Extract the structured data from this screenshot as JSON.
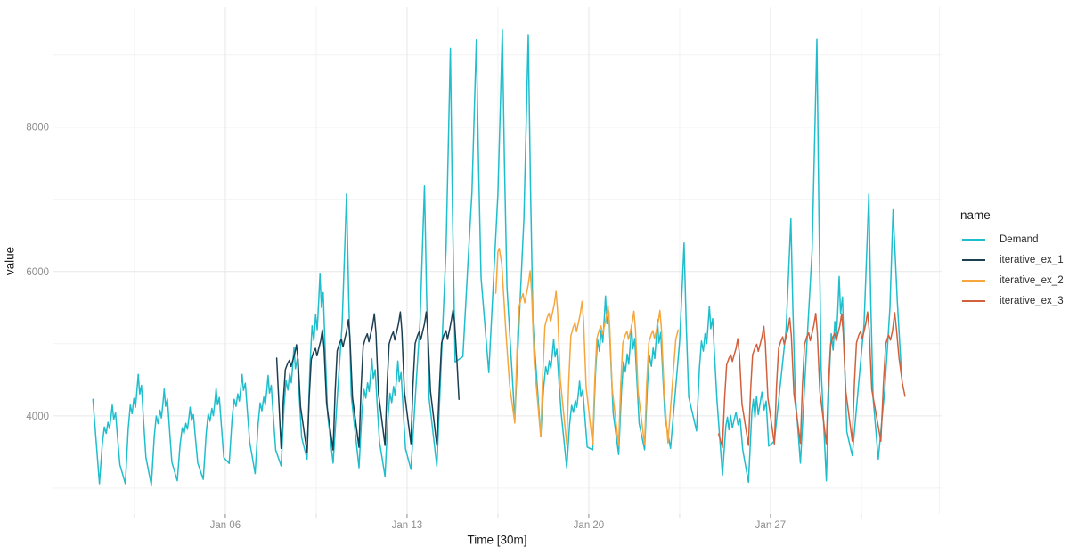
{
  "chart_data": {
    "type": "line",
    "title": "",
    "xlabel": "Time [30m]",
    "ylabel": "value",
    "legend_title": "name",
    "x_unit": "day of January",
    "x_domain": [
      -0.62,
      33.59
    ],
    "y_domain": [
      2640,
      9663
    ],
    "x_ticks": [
      {
        "v": 6,
        "label": "Jan 06"
      },
      {
        "v": 13,
        "label": "Jan 13"
      },
      {
        "v": 20,
        "label": "Jan 20"
      },
      {
        "v": 27,
        "label": "Jan 27"
      }
    ],
    "x_minor": [
      2.5,
      9.5,
      16.5,
      23.5,
      30.5,
      33.5
    ],
    "y_ticks": [
      {
        "v": 4000,
        "label": "4000"
      },
      {
        "v": 6000,
        "label": "6000"
      },
      {
        "v": 8000,
        "label": "8000"
      }
    ],
    "y_minor": [
      3000,
      5000,
      7000,
      9000
    ],
    "grid": "on",
    "legend_position": "right",
    "styles": {
      "background": "#FFFFFF",
      "grid_major": "#E7E7E7",
      "grid_minor": "#F2F2F2",
      "tick_mark": "#8A8A8A",
      "tick_mark_minor": "#DCDCDC",
      "tick_label_color": "#8C8C8C",
      "axis_title_color": "#1A1A1A",
      "line_width": 1.5
    },
    "shapes": {
      "normal": [
        [
          0.15,
          0
        ],
        [
          0.26,
          0.5
        ],
        [
          0.34,
          0.72
        ],
        [
          0.41,
          0.64
        ],
        [
          0.48,
          0.78
        ],
        [
          0.54,
          0.7
        ],
        [
          0.6,
          0.86
        ],
        [
          0.645,
          1
        ],
        [
          0.7,
          0.82
        ],
        [
          0.77,
          0.9
        ],
        [
          0.85,
          0.58
        ],
        [
          0.94,
          0.24
        ]
      ],
      "low": [
        [
          0.15,
          0
        ],
        [
          0.28,
          0.78
        ],
        [
          0.34,
          0.92
        ],
        [
          0.4,
          0.72
        ],
        [
          0.46,
          0.95
        ],
        [
          0.53,
          0.75
        ],
        [
          0.6,
          0.88
        ],
        [
          0.67,
          1
        ],
        [
          0.75,
          0.8
        ],
        [
          0.83,
          0.9
        ],
        [
          0.93,
          0.4
        ]
      ],
      "spike": [
        [
          0.15,
          0
        ],
        [
          0.35,
          0.3
        ],
        [
          0.5,
          0.52
        ],
        [
          0.6,
          0.8
        ],
        [
          0.67,
          1
        ],
        [
          0.75,
          0.62
        ],
        [
          0.85,
          0.25
        ]
      ],
      "spike_late": [
        [
          0.15,
          0
        ],
        [
          0.4,
          0.28
        ],
        [
          0.6,
          0.5
        ],
        [
          0.72,
          0.82
        ],
        [
          0.785,
          1
        ],
        [
          0.86,
          0.6
        ],
        [
          0.95,
          0.22
        ]
      ],
      "forecast": [
        [
          0.15,
          0
        ],
        [
          0.23,
          0.45
        ],
        [
          0.31,
          0.76
        ],
        [
          0.4,
          0.82
        ],
        [
          0.47,
          0.85
        ],
        [
          0.53,
          0.79
        ],
        [
          0.6,
          0.85
        ],
        [
          0.67,
          0.91
        ],
        [
          0.74,
          1
        ],
        [
          0.8,
          0.86
        ],
        [
          0.9,
          0.4
        ]
      ]
    },
    "series": [
      {
        "name": "Demand",
        "color": "#1FBECD",
        "default_shape": "normal",
        "prefix": [
          [
            0.9,
            4230
          ]
        ],
        "days": [
          {
            "d": 1,
            "min": 3060,
            "peak": 4150
          },
          {
            "d": 2,
            "min": 3060,
            "peak": 4575
          },
          {
            "d": 3,
            "min": 3040,
            "peak": 4370
          },
          {
            "d": 4,
            "min": 3100,
            "peak": 4120
          },
          {
            "d": 5,
            "min": 3120,
            "peak": 4380
          },
          {
            "d": 6,
            "min": 3340,
            "peak": 4575
          },
          {
            "d": 7,
            "min": 3200,
            "peak": 4560
          },
          {
            "d": 8,
            "min": 3305,
            "peak": 4950
          },
          {
            "d": 9,
            "min": 3400,
            "peak": 5965
          },
          {
            "d": 10,
            "min": 3345,
            "peak": 7075,
            "shape": "spike"
          },
          {
            "d": 11,
            "min": 3280,
            "peak": 4790
          },
          {
            "d": 12,
            "min": 3160,
            "peak": 4760
          },
          {
            "d": 13,
            "min": 3258,
            "peak": 7185,
            "shape": "spike"
          },
          {
            "d": 14,
            "min": 3300,
            "peak": 9090,
            "shape": "spike"
          },
          {
            "d": 15,
            "min": 4820,
            "peak": 9210,
            "shape": "spike"
          },
          {
            "d": 16,
            "min": 4600,
            "peak": 9350,
            "shape": "spike"
          },
          {
            "d": 17,
            "min": 3960,
            "peak": 9280,
            "shape": "spike"
          },
          {
            "d": 18,
            "min": 3710,
            "peak": 5060
          },
          {
            "d": 19,
            "min": 3280,
            "peak": 4480
          },
          {
            "d": 20,
            "min": 3530,
            "peak": 5660
          },
          {
            "d": 21,
            "min": 3465,
            "peak": 5250
          },
          {
            "d": 22,
            "min": 3530,
            "peak": 5335
          },
          {
            "d": 23,
            "min": 3550,
            "peak": 6395,
            "shape": "spike"
          },
          {
            "d": 24,
            "min": 3790,
            "peak": 5520
          },
          {
            "d": 25,
            "min": 3180,
            "peak": 4050,
            "shape": "low"
          },
          {
            "d": 26,
            "min": 3080,
            "peak": 4330,
            "shape": "low"
          },
          {
            "d": 27,
            "min": 3650,
            "peak": 6730,
            "shape": "spike_late"
          },
          {
            "d": 28,
            "min": 3345,
            "peak": 9215,
            "shape": "spike_late"
          },
          {
            "d": 29,
            "min": 3100,
            "peak": 5930
          },
          {
            "d": 30,
            "min": 3450,
            "peak": 7075,
            "shape": "spike_late"
          },
          {
            "d": 31,
            "pts": [
              [
                31.15,
                3400
              ],
              [
                31.4,
                4370
              ],
              [
                31.6,
                5500
              ],
              [
                31.72,
                6855
              ],
              [
                31.88,
                5600
              ],
              [
                32.05,
                4550
              ]
            ]
          }
        ]
      },
      {
        "name": "iterative_ex_1",
        "color": "#1D3F52",
        "default_shape": "forecast",
        "prefix": [
          [
            7.98,
            4800
          ]
        ],
        "days": [
          {
            "d": 8,
            "min": 3550,
            "peak": 4985
          },
          {
            "d": 9,
            "min": 3490,
            "peak": 5190
          },
          {
            "d": 10,
            "min": 3527,
            "peak": 5335
          },
          {
            "d": 11,
            "min": 3565,
            "peak": 5415
          },
          {
            "d": 12,
            "min": 3590,
            "peak": 5440
          },
          {
            "d": 13,
            "min": 3614,
            "peak": 5440
          },
          {
            "d": 14,
            "pts": [
              [
                14.15,
                3590
              ],
              [
                14.25,
                4430
              ],
              [
                14.33,
                5010
              ],
              [
                14.42,
                5120
              ],
              [
                14.5,
                5180
              ],
              [
                14.56,
                5060
              ],
              [
                14.63,
                5180
              ],
              [
                14.7,
                5310
              ],
              [
                14.77,
                5465
              ],
              [
                14.83,
                5300
              ],
              [
                14.93,
                4700
              ],
              [
                15.0,
                4230
              ]
            ]
          }
        ]
      },
      {
        "name": "iterative_ex_2",
        "color": "#F5A73E",
        "default_shape": "forecast",
        "prefix": [
          [
            16.42,
            5700
          ],
          [
            16.5,
            6270
          ],
          [
            16.55,
            6320
          ],
          [
            16.65,
            6100
          ],
          [
            16.8,
            5200
          ],
          [
            16.95,
            4420
          ]
        ],
        "days": [
          {
            "d": 17,
            "min": 3900,
            "peak": 6010
          },
          {
            "d": 18,
            "min": 3710,
            "peak": 5725
          },
          {
            "d": 19,
            "min": 3600,
            "peak": 5585
          },
          {
            "d": 20,
            "min": 3600,
            "peak": 5535
          },
          {
            "d": 21,
            "min": 3590,
            "peak": 5450
          },
          {
            "d": 22,
            "min": 3600,
            "peak": 5460
          }
        ],
        "suffix": [
          [
            23.05,
            3625
          ],
          [
            23.2,
            4350
          ],
          [
            23.35,
            5060
          ],
          [
            23.44,
            5190
          ]
        ]
      },
      {
        "name": "iterative_ex_3",
        "color": "#D2603C",
        "default_shape": "forecast",
        "prefix": [
          [
            25.0,
            3750
          ]
        ],
        "days": [
          {
            "d": 25,
            "min": 3565,
            "peak": 5070
          },
          {
            "d": 26,
            "min": 3590,
            "peak": 5240
          },
          {
            "d": 27,
            "min": 3610,
            "peak": 5355
          },
          {
            "d": 28,
            "min": 3620,
            "peak": 5420
          },
          {
            "d": 29,
            "min": 3615,
            "peak": 5415
          },
          {
            "d": 30,
            "min": 3650,
            "peak": 5440
          },
          {
            "d": 31,
            "pts": [
              [
                31.25,
                3650
              ],
              [
                31.35,
                4450
              ],
              [
                31.44,
                5000
              ],
              [
                31.55,
                5120
              ],
              [
                31.62,
                5050
              ],
              [
                31.7,
                5180
              ],
              [
                31.78,
                5430
              ],
              [
                31.85,
                5200
              ],
              [
                31.95,
                4800
              ],
              [
                32.08,
                4450
              ],
              [
                32.18,
                4270
              ]
            ]
          }
        ]
      }
    ]
  }
}
